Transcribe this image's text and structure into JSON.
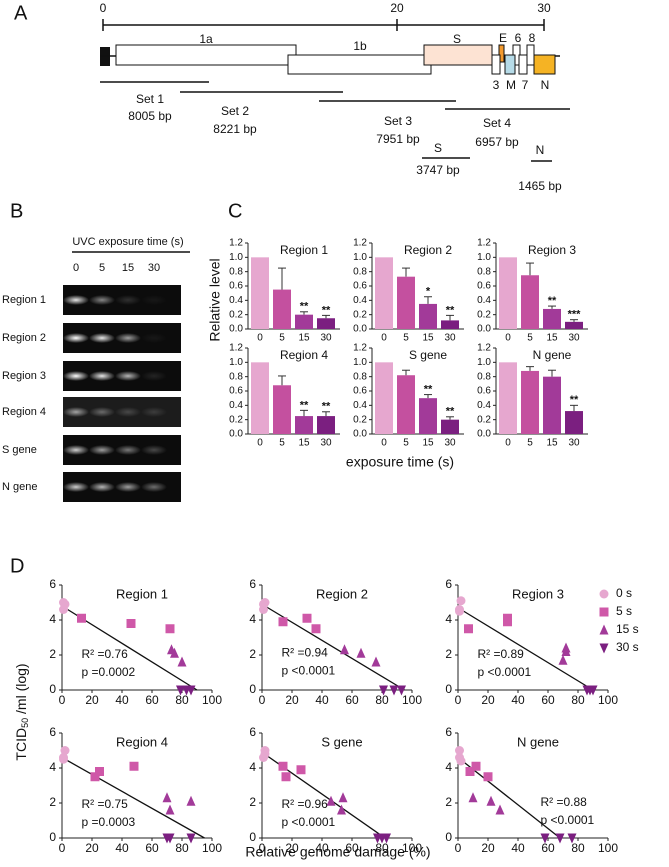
{
  "panels": [
    "A",
    "B",
    "C",
    "D"
  ],
  "genome_map": {
    "xlim": [
      0,
      30
    ],
    "xticks": [
      0,
      20,
      30
    ],
    "genes": [
      "1a",
      "1b",
      "S",
      "E",
      "6",
      "8",
      "3",
      "M",
      "7",
      "N"
    ],
    "sets": [
      {
        "name": "Set 1",
        "length": "8005 bp"
      },
      {
        "name": "Set 2",
        "length": "8221 bp"
      },
      {
        "name": "Set 3",
        "length": "7951 bp"
      },
      {
        "name": "Set 4",
        "length": "6957 bp"
      },
      {
        "name": "S",
        "length": "3747 bp"
      },
      {
        "name": "N",
        "length": "1465 bp"
      }
    ]
  },
  "gel": {
    "label": "UVC exposure time (s)",
    "lanes": [
      "0",
      "5",
      "15",
      "30"
    ],
    "rows": [
      "Region 1",
      "Region 2",
      "Region 3",
      "Region 4",
      "S gene",
      "N gene"
    ]
  },
  "panel_c": {
    "ylabel": "Relative level",
    "xlabel": "exposure time (s)"
  },
  "panel_d": {
    "ylabel": {
      "main": "TCID",
      "sub": "50",
      "rest": " /ml (log)"
    },
    "xlabel": "Relative genome damage (%)"
  },
  "chart_data": [
    {
      "type": "bar",
      "title": "Region 1",
      "categories": [
        "0",
        "5",
        "15",
        "30"
      ],
      "values": [
        1.0,
        0.55,
        0.2,
        0.15
      ],
      "errors": [
        0,
        0.3,
        0.04,
        0.04
      ],
      "significance": [
        null,
        null,
        "**",
        "**"
      ],
      "colors": [
        "#e6a7cf",
        "#c4509f",
        "#a23a99",
        "#7b1f80"
      ],
      "ylim": [
        0,
        1.2
      ],
      "yticks": [
        {
          "value": 0,
          "label": "0.0"
        },
        0.2,
        0.4,
        0.6,
        0.8,
        {
          "value": 1,
          "label": "1.0"
        },
        1.2
      ]
    },
    {
      "type": "bar",
      "title": "Region 2",
      "categories": [
        "0",
        "5",
        "15",
        "30"
      ],
      "values": [
        1.0,
        0.73,
        0.35,
        0.12
      ],
      "errors": [
        0,
        0.12,
        0.1,
        0.07
      ],
      "significance": [
        null,
        null,
        "*",
        "**"
      ],
      "colors": [
        "#e6a7cf",
        "#c4509f",
        "#a23a99",
        "#7b1f80"
      ],
      "ylim": [
        0,
        1.2
      ],
      "yticks": [
        {
          "value": 0,
          "label": "0.0"
        },
        0.2,
        0.4,
        0.6,
        0.8,
        {
          "value": 1,
          "label": "1.0"
        },
        1.2
      ]
    },
    {
      "type": "bar",
      "title": "Region 3",
      "categories": [
        "0",
        "5",
        "15",
        "30"
      ],
      "values": [
        1.0,
        0.75,
        0.28,
        0.1
      ],
      "errors": [
        0,
        0.17,
        0.04,
        0.03
      ],
      "significance": [
        null,
        null,
        "**",
        "***"
      ],
      "colors": [
        "#e6a7cf",
        "#c4509f",
        "#a23a99",
        "#7b1f80"
      ],
      "ylim": [
        0,
        1.2
      ],
      "yticks": [
        {
          "value": 0,
          "label": "0.0"
        },
        0.2,
        0.4,
        0.6,
        0.8,
        {
          "value": 1,
          "label": "1.0"
        },
        1.2
      ]
    },
    {
      "type": "bar",
      "title": "Region 4",
      "categories": [
        "0",
        "5",
        "15",
        "30"
      ],
      "values": [
        1.0,
        0.68,
        0.25,
        0.25
      ],
      "errors": [
        0,
        0.13,
        0.08,
        0.06
      ],
      "significance": [
        null,
        null,
        "**",
        "**"
      ],
      "colors": [
        "#e6a7cf",
        "#c4509f",
        "#a23a99",
        "#7b1f80"
      ],
      "ylim": [
        0,
        1.2
      ],
      "yticks": [
        {
          "value": 0,
          "label": "0.0"
        },
        0.2,
        0.4,
        0.6,
        0.8,
        {
          "value": 1,
          "label": "1.0"
        },
        1.2
      ]
    },
    {
      "type": "bar",
      "title": "S gene",
      "categories": [
        "0",
        "5",
        "15",
        "30"
      ],
      "values": [
        1.0,
        0.82,
        0.5,
        0.2
      ],
      "errors": [
        0,
        0.07,
        0.05,
        0.04
      ],
      "significance": [
        null,
        null,
        "**",
        "**"
      ],
      "colors": [
        "#e6a7cf",
        "#c4509f",
        "#a23a99",
        "#7b1f80"
      ],
      "ylim": [
        0,
        1.2
      ],
      "yticks": [
        {
          "value": 0,
          "label": "0.0"
        },
        0.2,
        0.4,
        0.6,
        0.8,
        {
          "value": 1,
          "label": "1.0"
        },
        1.2
      ]
    },
    {
      "type": "bar",
      "title": "N gene",
      "categories": [
        "0",
        "5",
        "15",
        "30"
      ],
      "values": [
        1.0,
        0.88,
        0.8,
        0.32
      ],
      "errors": [
        0,
        0.06,
        0.09,
        0.08
      ],
      "significance": [
        null,
        null,
        null,
        "**"
      ],
      "colors": [
        "#e6a7cf",
        "#c4509f",
        "#a23a99",
        "#7b1f80"
      ],
      "ylim": [
        0,
        1.2
      ],
      "yticks": [
        {
          "value": 0,
          "label": "0.0"
        },
        0.2,
        0.4,
        0.6,
        0.8,
        {
          "value": 1,
          "label": "1.0"
        },
        1.2
      ]
    },
    {
      "type": "scatter",
      "title": "Region 1",
      "xlim": [
        0,
        100
      ],
      "xticks": [
        0,
        20,
        40,
        60,
        80,
        100
      ],
      "ylim": [
        0,
        6
      ],
      "yticks": [
        0,
        2,
        4,
        6
      ],
      "series": [
        {
          "name": "0 s",
          "marker": "circle",
          "color": "#e6a7cf",
          "x": [
            1,
            1,
            2
          ],
          "y": [
            5.0,
            4.6,
            4.9
          ]
        },
        {
          "name": "5 s",
          "marker": "square",
          "color": "#cf58a8",
          "x": [
            13,
            46,
            72
          ],
          "y": [
            4.1,
            3.8,
            3.5
          ]
        },
        {
          "name": "15 s",
          "marker": "triangle-up",
          "color": "#a23a99",
          "x": [
            73,
            75,
            80
          ],
          "y": [
            2.3,
            2.1,
            1.6
          ]
        },
        {
          "name": "30 s",
          "marker": "triangle-down",
          "color": "#7b1f80",
          "x": [
            79,
            83,
            86
          ],
          "y": [
            0,
            0,
            0
          ]
        }
      ],
      "fit": {
        "x": [
          0,
          90
        ],
        "y": [
          4.8,
          0
        ]
      },
      "annotations": [
        "R² =0.76",
        "p =0.0002"
      ]
    },
    {
      "type": "scatter",
      "title": "Region 2",
      "xlim": [
        0,
        100
      ],
      "xticks": [
        0,
        20,
        40,
        60,
        80,
        100
      ],
      "ylim": [
        0,
        6
      ],
      "yticks": [
        0,
        2,
        4,
        6
      ],
      "series": [
        {
          "name": "0 s",
          "marker": "circle",
          "color": "#e6a7cf",
          "x": [
            1,
            1,
            2
          ],
          "y": [
            4.9,
            4.6,
            5.0
          ]
        },
        {
          "name": "5 s",
          "marker": "square",
          "color": "#cf58a8",
          "x": [
            14,
            30,
            36
          ],
          "y": [
            3.9,
            4.1,
            3.5
          ]
        },
        {
          "name": "15 s",
          "marker": "triangle-up",
          "color": "#a23a99",
          "x": [
            55,
            66,
            76
          ],
          "y": [
            2.3,
            2.1,
            1.6
          ]
        },
        {
          "name": "30 s",
          "marker": "triangle-down",
          "color": "#7b1f80",
          "x": [
            81,
            88,
            93
          ],
          "y": [
            0,
            0,
            0
          ]
        }
      ],
      "fit": {
        "x": [
          0,
          95
        ],
        "y": [
          4.9,
          0
        ]
      },
      "annotations": [
        "R² =0.94",
        "p <0.0001"
      ]
    },
    {
      "type": "scatter",
      "title": "Region 3",
      "xlim": [
        0,
        100
      ],
      "xticks": [
        0,
        20,
        40,
        60,
        80,
        100
      ],
      "ylim": [
        0,
        6
      ],
      "yticks": [
        0,
        2,
        4,
        6
      ],
      "series": [
        {
          "name": "0 s",
          "marker": "circle",
          "color": "#e6a7cf",
          "x": [
            2,
            1,
            1
          ],
          "y": [
            5.1,
            4.6,
            4.5
          ]
        },
        {
          "name": "5 s",
          "marker": "square",
          "color": "#cf58a8",
          "x": [
            7,
            33,
            33
          ],
          "y": [
            3.5,
            4.1,
            3.9
          ]
        },
        {
          "name": "15 s",
          "marker": "triangle-up",
          "color": "#a23a99",
          "x": [
            70,
            72,
            72
          ],
          "y": [
            1.7,
            2.2,
            2.4
          ]
        },
        {
          "name": "30 s",
          "marker": "triangle-down",
          "color": "#7b1f80",
          "x": [
            86,
            88,
            90
          ],
          "y": [
            0,
            0,
            0
          ]
        }
      ],
      "fit": {
        "x": [
          0,
          90
        ],
        "y": [
          4.7,
          0
        ]
      },
      "annotations": [
        "R² =0.89",
        "p <0.0001"
      ]
    },
    {
      "type": "scatter",
      "title": "Region 4",
      "xlim": [
        0,
        100
      ],
      "xticks": [
        0,
        20,
        40,
        60,
        80,
        100
      ],
      "ylim": [
        0,
        6
      ],
      "yticks": [
        0,
        2,
        4,
        6
      ],
      "series": [
        {
          "name": "0 s",
          "marker": "circle",
          "color": "#e6a7cf",
          "x": [
            2,
            1,
            1
          ],
          "y": [
            5.0,
            4.6,
            4.5
          ]
        },
        {
          "name": "5 s",
          "marker": "square",
          "color": "#cf58a8",
          "x": [
            22,
            25,
            48
          ],
          "y": [
            3.5,
            3.8,
            4.1
          ]
        },
        {
          "name": "15 s",
          "marker": "triangle-up",
          "color": "#a23a99",
          "x": [
            70,
            72,
            86
          ],
          "y": [
            2.3,
            1.6,
            2.1
          ]
        },
        {
          "name": "30 s",
          "marker": "triangle-down",
          "color": "#7b1f80",
          "x": [
            70,
            72,
            86
          ],
          "y": [
            0,
            0,
            0
          ]
        }
      ],
      "fit": {
        "x": [
          0,
          95
        ],
        "y": [
          4.6,
          0
        ]
      },
      "annotations": [
        "R² =0.75",
        "p =0.0003"
      ]
    },
    {
      "type": "scatter",
      "title": "S gene",
      "xlim": [
        0,
        100
      ],
      "xticks": [
        0,
        20,
        40,
        60,
        80,
        100
      ],
      "ylim": [
        0,
        6
      ],
      "yticks": [
        0,
        2,
        4,
        6
      ],
      "series": [
        {
          "name": "0 s",
          "marker": "circle",
          "color": "#e6a7cf",
          "x": [
            2,
            1,
            2
          ],
          "y": [
            5.0,
            4.6,
            4.8
          ]
        },
        {
          "name": "5 s",
          "marker": "square",
          "color": "#cf58a8",
          "x": [
            14,
            16,
            26
          ],
          "y": [
            4.1,
            3.5,
            3.9
          ]
        },
        {
          "name": "15 s",
          "marker": "triangle-up",
          "color": "#a23a99",
          "x": [
            46,
            54,
            53
          ],
          "y": [
            2.1,
            2.3,
            1.6
          ]
        },
        {
          "name": "30 s",
          "marker": "triangle-down",
          "color": "#7b1f80",
          "x": [
            77,
            80,
            83
          ],
          "y": [
            0,
            0,
            0
          ]
        }
      ],
      "fit": {
        "x": [
          0,
          82
        ],
        "y": [
          4.9,
          0
        ]
      },
      "annotations": [
        "R² =0.96",
        "p <0.0001"
      ]
    },
    {
      "type": "scatter",
      "title": "N gene",
      "xlim": [
        0,
        100
      ],
      "xticks": [
        0,
        20,
        40,
        60,
        80,
        100
      ],
      "ylim": [
        0,
        6
      ],
      "yticks": [
        0,
        2,
        4,
        6
      ],
      "series": [
        {
          "name": "0 s",
          "marker": "circle",
          "color": "#e6a7cf",
          "x": [
            1,
            1,
            2
          ],
          "y": [
            5.0,
            4.6,
            4.4
          ]
        },
        {
          "name": "5 s",
          "marker": "square",
          "color": "#cf58a8",
          "x": [
            8,
            12,
            20
          ],
          "y": [
            3.8,
            4.1,
            3.5
          ]
        },
        {
          "name": "15 s",
          "marker": "triangle-up",
          "color": "#a23a99",
          "x": [
            10,
            22,
            28
          ],
          "y": [
            2.3,
            2.1,
            1.6
          ]
        },
        {
          "name": "30 s",
          "marker": "triangle-down",
          "color": "#7b1f80",
          "x": [
            58,
            68,
            76
          ],
          "y": [
            0,
            0,
            0
          ]
        }
      ],
      "fit": {
        "x": [
          0,
          68
        ],
        "y": [
          4.6,
          0
        ]
      },
      "annotations": [
        "R² =0.88",
        "p <0.0001"
      ]
    }
  ]
}
